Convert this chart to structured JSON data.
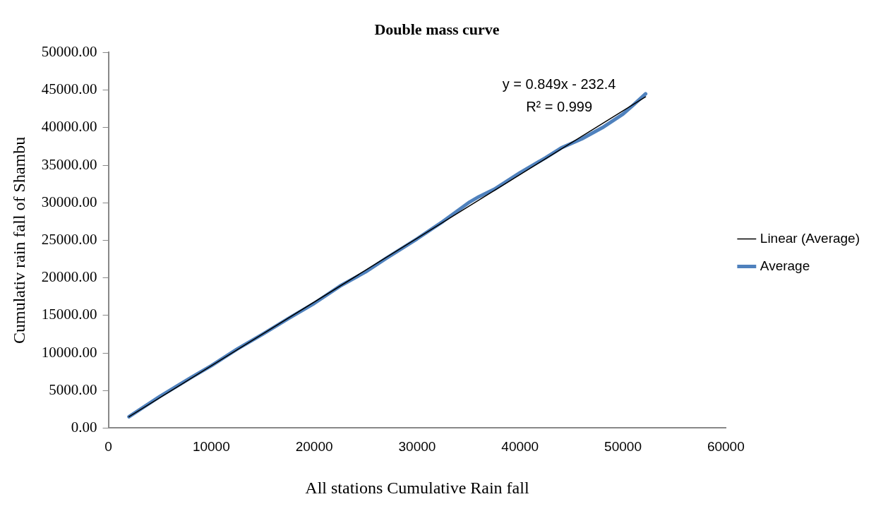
{
  "chart_data": {
    "type": "line",
    "title": "Double mass curve",
    "xlabel": "All stations Cumulative Rain fall",
    "ylabel": "Cumulativ rain fall of Shambu",
    "x": [
      2000,
      5000,
      8000,
      10000,
      12500,
      15000,
      17500,
      20000,
      22500,
      25000,
      27000,
      30000,
      32500,
      35000,
      36000,
      37500,
      40000,
      42500,
      44000,
      46000,
      48000,
      50000,
      51000,
      52200
    ],
    "series": [
      {
        "name": "Average",
        "color": "#4f81bd",
        "values": [
          1500,
          4200,
          6700,
          8300,
          10500,
          12500,
          14600,
          16600,
          18900,
          20800,
          22600,
          25200,
          27500,
          30000,
          30800,
          31800,
          34000,
          36000,
          37300,
          38500,
          40000,
          41800,
          43000,
          44500
        ]
      },
      {
        "name": "Linear (Average)",
        "type": "line",
        "color": "#000000",
        "x": [
          2000,
          52200
        ],
        "values": [
          1500,
          44100
        ]
      }
    ],
    "xlim": [
      0,
      60000
    ],
    "xticks": [
      0,
      10000,
      20000,
      30000,
      40000,
      50000,
      60000
    ],
    "ylim": [
      0,
      50000
    ],
    "yticks": [
      {
        "value": 0,
        "label": "0.00"
      },
      {
        "value": 5000,
        "label": "5000.00"
      },
      {
        "value": 10000,
        "label": "10000.00"
      },
      {
        "value": 15000,
        "label": "15000.00"
      },
      {
        "value": 20000,
        "label": "20000.00"
      },
      {
        "value": 25000,
        "label": "25000.00"
      },
      {
        "value": 30000,
        "label": "30000.00"
      },
      {
        "value": 35000,
        "label": "35000.00"
      },
      {
        "value": 40000,
        "label": "40000.00"
      },
      {
        "value": 45000,
        "label": "45000.00"
      },
      {
        "value": 50000,
        "label": "50000.00"
      }
    ],
    "annotations": [
      "y = 0.849x - 232.4",
      "R² = 0.999"
    ],
    "grid": false,
    "legend": "right",
    "marker": "none"
  }
}
